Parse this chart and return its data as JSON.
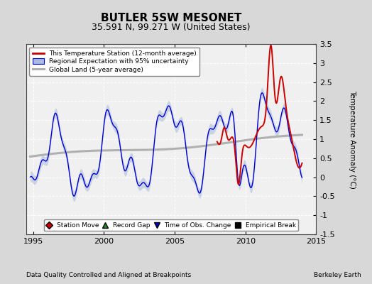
{
  "title": "BUTLER 5SW MESONET",
  "subtitle": "35.591 N, 99.271 W (United States)",
  "ylabel": "Temperature Anomaly (°C)",
  "xlabel_left": "Data Quality Controlled and Aligned at Breakpoints",
  "xlabel_right": "Berkeley Earth",
  "ylim": [
    -1.5,
    3.5
  ],
  "xlim": [
    1994.5,
    2015.0
  ],
  "yticks": [
    -1.5,
    -1.0,
    -0.5,
    0.0,
    0.5,
    1.0,
    1.5,
    2.0,
    2.5,
    3.0,
    3.5
  ],
  "xticks": [
    1995,
    2000,
    2005,
    2010,
    2015
  ],
  "bg_color": "#d8d8d8",
  "plot_bg_color": "#f0f0f0",
  "red_color": "#cc0000",
  "blue_color": "#0000cc",
  "blue_fill_color": "#aabbdd",
  "gray_color": "#b0b0b0",
  "title_fontsize": 11,
  "subtitle_fontsize": 9,
  "tick_labelsize": 8,
  "legend1_items": [
    "This Temperature Station (12-month average)",
    "Regional Expectation with 95% uncertainty",
    "Global Land (5-year average)"
  ],
  "legend2_items": [
    "Station Move",
    "Record Gap",
    "Time of Obs. Change",
    "Empirical Break"
  ]
}
